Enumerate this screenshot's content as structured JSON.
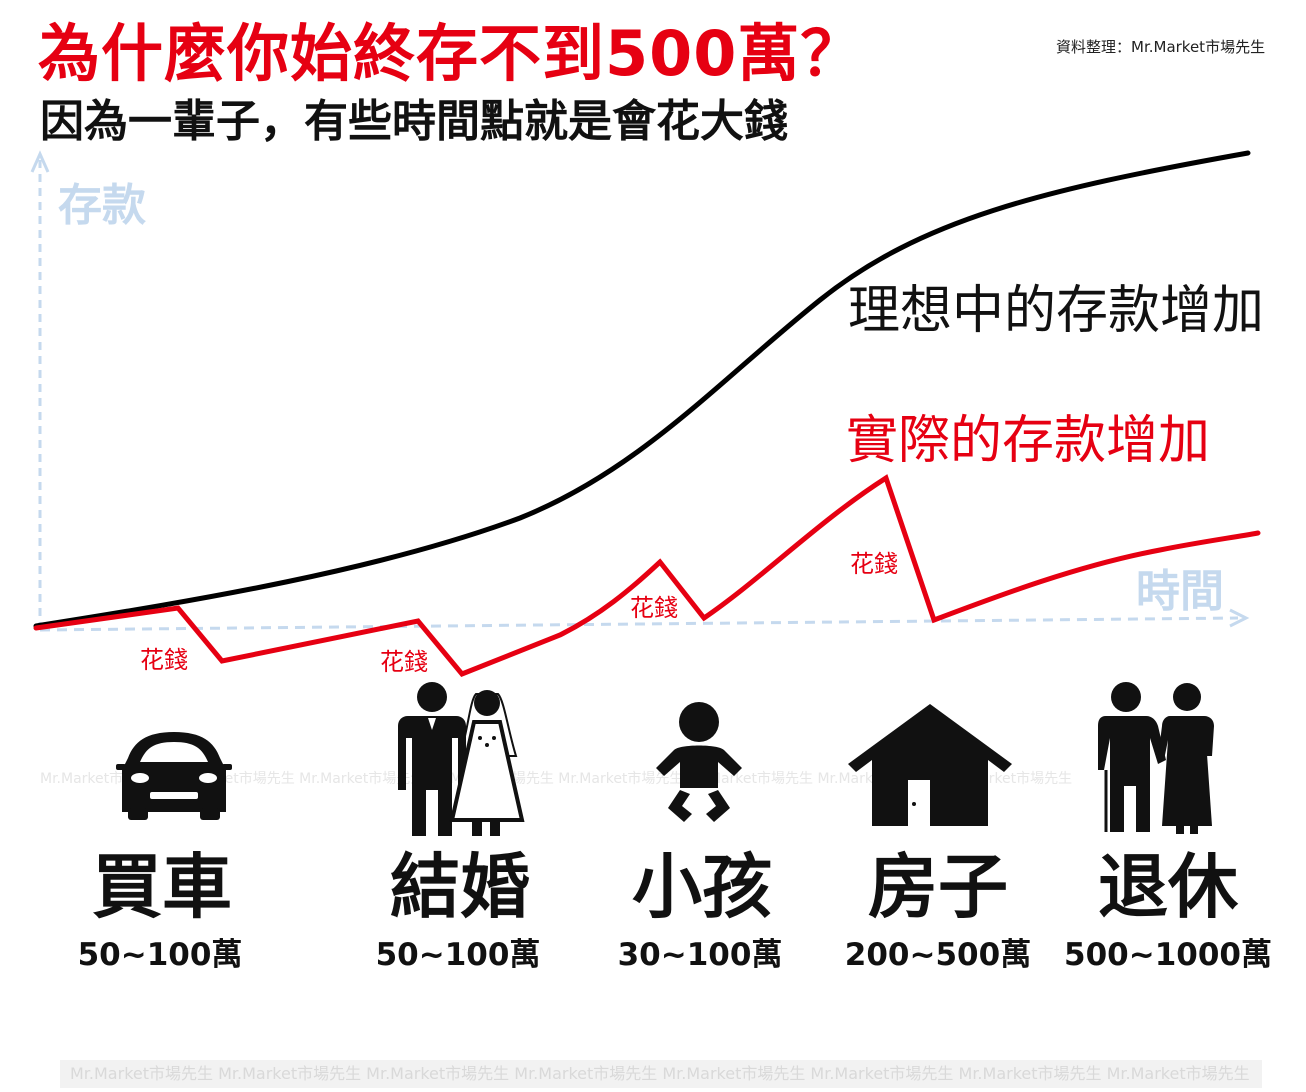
{
  "header": {
    "title": "為什麼你始終存不到500萬？",
    "subtitle": "因為一輩子，有些時間點就是會花大錢",
    "source": "資料整理：Mr.Market市場先生"
  },
  "chart": {
    "y_axis_label": "存款",
    "x_axis_label": "時間",
    "ideal_line_label": "理想中的存款增加",
    "actual_line_label": "實際的存款增加",
    "spend_label": "花錢",
    "ideal_color": "#000000",
    "actual_color": "#e60012",
    "axis_color": "#c5d9ee"
  },
  "events": [
    {
      "label": "買車",
      "amount": "50~100萬",
      "icon": "car-icon"
    },
    {
      "label": "結婚",
      "amount": "50~100萬",
      "icon": "wedding-couple-icon"
    },
    {
      "label": "小孩",
      "amount": "30~100萬",
      "icon": "baby-icon"
    },
    {
      "label": "房子",
      "amount": "200~500萬",
      "icon": "house-icon"
    },
    {
      "label": "退休",
      "amount": "500~1000萬",
      "icon": "elderly-couple-icon"
    }
  ],
  "watermark": "Mr.Market市場先生 Mr.Market市場先生 Mr.Market市場先生 Mr.Market市場先生 Mr.Market市場先生 Mr.Market市場先生 Mr.Market市場先生 Mr.Market市場先生"
}
